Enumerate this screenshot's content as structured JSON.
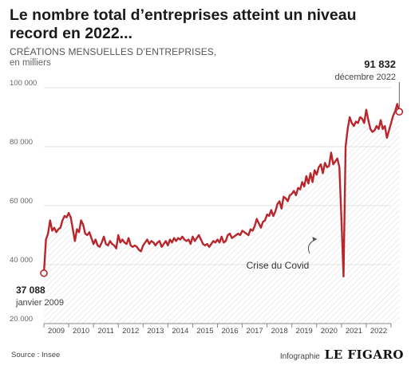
{
  "chart_data": {
    "type": "line",
    "title": "Le nombre total d’entreprises atteint un niveau record en 2022...",
    "subtitle": "CRÉATIONS MENSUELLES D’ENTREPRISES,",
    "unit_label": "en milliers",
    "ylim": [
      20000,
      100000
    ],
    "y_ticks": [
      20000,
      40000,
      60000,
      80000,
      100000
    ],
    "y_tick_labels": [
      "20 000",
      "40 000",
      "60 000",
      "80 000",
      "100 000"
    ],
    "x_range": [
      2009.0,
      2023.0
    ],
    "x_ticks": [
      2009,
      2010,
      2011,
      2012,
      2013,
      2014,
      2015,
      2016,
      2017,
      2018,
      2019,
      2020,
      2021,
      2022
    ],
    "x_tick_labels": [
      "2009",
      "2010",
      "2011",
      "2012",
      "2013",
      "2014",
      "2015",
      "2016",
      "2017",
      "2018",
      "2019",
      "2020",
      "2021",
      "2022"
    ],
    "grid": true,
    "line_color": "#b8262c",
    "series": [
      {
        "values": [
          37088,
          48500,
          50500,
          55000,
          51500,
          52500,
          51000,
          52000,
          52500,
          55000,
          56500,
          56000,
          57500,
          56000,
          52000,
          48000,
          52000,
          51000,
          55000,
          53500,
          50500,
          50000,
          51000,
          49000,
          47000,
          48500,
          46500,
          46000,
          47500,
          49500,
          47000,
          46500,
          48000,
          47000,
          46500,
          45500,
          50000,
          47500,
          48500,
          47500,
          47000,
          49000,
          46500,
          46000,
          46500,
          46000,
          45000,
          44500,
          46500,
          47500,
          48500,
          47000,
          48000,
          47500,
          46500,
          47500,
          48000,
          46000,
          47000,
          48000,
          46500,
          48500,
          47500,
          49000,
          48000,
          49000,
          48500,
          49500,
          48500,
          48000,
          48500,
          47000,
          49500,
          48000,
          49000,
          50000,
          48500,
          47000,
          46500,
          47000,
          46000,
          47000,
          48000,
          47500,
          48500,
          47500,
          49500,
          47500,
          48000,
          50000,
          50500,
          49000,
          49500,
          50000,
          50500,
          50000,
          51500,
          51000,
          50500,
          50000,
          52000,
          51500,
          53000,
          55500,
          54000,
          52500,
          54500,
          55000,
          57000,
          56500,
          58500,
          56500,
          58000,
          60500,
          61500,
          59000,
          63000,
          62500,
          61500,
          63500,
          64000,
          65000,
          63500,
          66000,
          65500,
          68000,
          66500,
          70000,
          67500,
          71000,
          68000,
          72000,
          70500,
          73000,
          74000,
          71000,
          74500,
          73000,
          73500,
          78000,
          74000,
          75000,
          76000,
          73000,
          55000,
          36000,
          80000,
          86000,
          90000,
          88000,
          87000,
          88500,
          88000,
          90000,
          89500,
          88000,
          92500,
          89000,
          86000,
          85000,
          85500,
          87000,
          86000,
          89000,
          86000,
          87000,
          83000,
          85500,
          88000,
          90500,
          92000,
          94500,
          91832
        ]
      }
    ],
    "annotations": [
      {
        "value": "37 088",
        "label": "janvier 2009"
      },
      {
        "value": "91 832",
        "label": "décembre 2022"
      },
      {
        "label": "Crise du Covid"
      }
    ],
    "source": "Source : Insee",
    "credit": "Infographie",
    "credit_logo": "LE FIGARO"
  }
}
